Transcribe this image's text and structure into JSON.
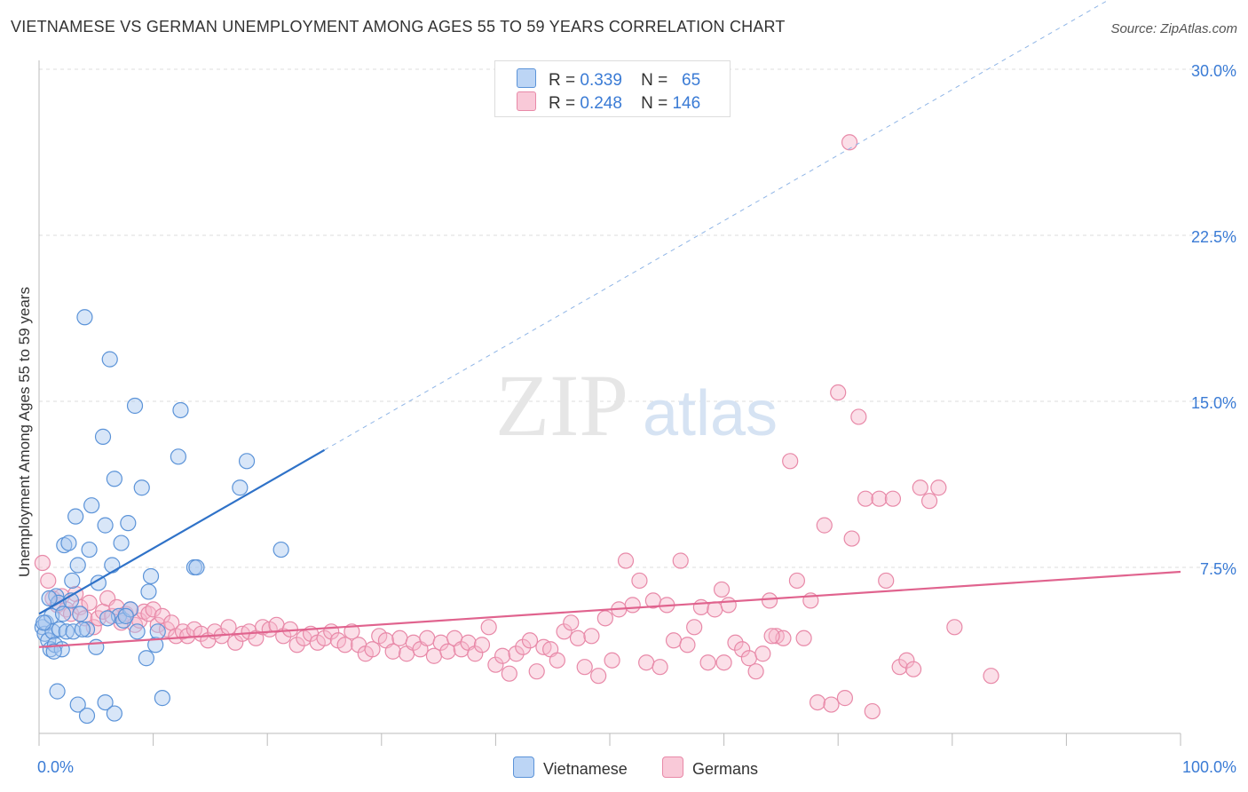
{
  "title": "VIETNAMESE VS GERMAN UNEMPLOYMENT AMONG AGES 55 TO 59 YEARS CORRELATION CHART",
  "source": "Source: ZipAtlas.com",
  "watermark": {
    "zip": "ZIP",
    "atlas": "atlas"
  },
  "legend": {
    "vietnamese": {
      "r_label": "R =",
      "r_value": "0.339",
      "n_label": "N =",
      "n_value": "65"
    },
    "germans": {
      "r_label": "R =",
      "r_value": "0.248",
      "n_label": "N =",
      "n_value": "146"
    }
  },
  "bottom_legend": {
    "vietnamese": "Vietnamese",
    "germans": "Germans"
  },
  "colors": {
    "vietnamese_fill": "#a8c8f0",
    "vietnamese_stroke": "#5b93d8",
    "vietnamese_line": "#2f72c8",
    "germans_fill": "#f7b8cc",
    "germans_stroke": "#e889a8",
    "germans_line": "#e0638e",
    "tick_label": "#3a7bd5",
    "grid": "#dddddd"
  },
  "chart_data": {
    "type": "scatter",
    "title": "VIETNAMESE VS GERMAN UNEMPLOYMENT AMONG AGES 55 TO 59 YEARS CORRELATION CHART",
    "xlabel": "",
    "ylabel": "Unemployment Among Ages 55 to 59 years",
    "xlim": [
      0,
      100
    ],
    "ylim": [
      0,
      30
    ],
    "x_tick_labels": [
      "0.0%",
      "100.0%"
    ],
    "y_ticks": [
      7.5,
      15.0,
      22.5,
      30.0
    ],
    "y_tick_labels": [
      "7.5%",
      "15.0%",
      "22.5%",
      "30.0%"
    ],
    "grid": true,
    "series": [
      {
        "name": "Vietnamese",
        "r": 0.339,
        "n": 65,
        "trend": {
          "x0": 0,
          "y0": 5.4,
          "x1": 25,
          "y1": 12.8,
          "dashed_to_x": 100,
          "dashed_to_y": 35.0
        },
        "points": [
          [
            0.3,
            4.8
          ],
          [
            0.5,
            4.5
          ],
          [
            0.6,
            5.0
          ],
          [
            0.8,
            4.2
          ],
          [
            1.0,
            3.8
          ],
          [
            1.2,
            4.6
          ],
          [
            1.4,
            4.0
          ],
          [
            1.5,
            6.2
          ],
          [
            1.7,
            5.9
          ],
          [
            1.8,
            4.7
          ],
          [
            2.0,
            3.8
          ],
          [
            2.2,
            8.5
          ],
          [
            2.4,
            4.6
          ],
          [
            2.6,
            8.6
          ],
          [
            2.8,
            6.0
          ],
          [
            3.0,
            4.6
          ],
          [
            3.2,
            9.8
          ],
          [
            3.4,
            7.6
          ],
          [
            3.6,
            5.4
          ],
          [
            4.0,
            18.8
          ],
          [
            4.2,
            4.7
          ],
          [
            4.4,
            8.3
          ],
          [
            4.6,
            10.3
          ],
          [
            5.0,
            3.9
          ],
          [
            5.2,
            6.8
          ],
          [
            5.6,
            13.4
          ],
          [
            5.8,
            9.4
          ],
          [
            6.2,
            16.9
          ],
          [
            6.4,
            7.6
          ],
          [
            6.6,
            11.5
          ],
          [
            7.0,
            5.3
          ],
          [
            7.2,
            8.6
          ],
          [
            7.4,
            5.1
          ],
          [
            7.8,
            9.5
          ],
          [
            8.0,
            5.6
          ],
          [
            8.4,
            14.8
          ],
          [
            8.6,
            4.6
          ],
          [
            9.0,
            11.1
          ],
          [
            9.4,
            3.4
          ],
          [
            9.6,
            6.4
          ],
          [
            9.8,
            7.1
          ],
          [
            10.2,
            4.0
          ],
          [
            10.4,
            4.6
          ],
          [
            10.8,
            1.6
          ],
          [
            13.6,
            7.5
          ],
          [
            13.8,
            7.5
          ],
          [
            12.2,
            12.5
          ],
          [
            12.4,
            14.6
          ],
          [
            17.6,
            11.1
          ],
          [
            18.2,
            12.3
          ],
          [
            21.2,
            8.3
          ],
          [
            1.6,
            1.9
          ],
          [
            3.4,
            1.3
          ],
          [
            4.2,
            0.8
          ],
          [
            5.8,
            1.4
          ],
          [
            6.6,
            0.9
          ],
          [
            1.1,
            5.3
          ],
          [
            1.3,
            3.7
          ],
          [
            2.1,
            5.4
          ],
          [
            0.9,
            6.1
          ],
          [
            3.8,
            4.7
          ],
          [
            2.9,
            6.9
          ],
          [
            6.0,
            5.2
          ],
          [
            7.6,
            5.3
          ],
          [
            0.4,
            5.0
          ]
        ]
      },
      {
        "name": "Germans",
        "r": 0.248,
        "n": 146,
        "trend": {
          "x0": 0,
          "y0": 3.9,
          "x1": 100,
          "y1": 7.3
        },
        "points": [
          [
            0.3,
            7.7
          ],
          [
            0.8,
            6.9
          ],
          [
            1.2,
            6.1
          ],
          [
            1.6,
            5.8
          ],
          [
            2.0,
            6.2
          ],
          [
            2.4,
            5.6
          ],
          [
            2.8,
            5.4
          ],
          [
            3.2,
            6.3
          ],
          [
            3.6,
            5.7
          ],
          [
            4.0,
            5.2
          ],
          [
            4.4,
            5.9
          ],
          [
            4.8,
            4.8
          ],
          [
            5.2,
            5.2
          ],
          [
            5.6,
            5.5
          ],
          [
            6.0,
            6.1
          ],
          [
            6.4,
            5.3
          ],
          [
            6.8,
            5.7
          ],
          [
            7.2,
            5.0
          ],
          [
            7.6,
            5.4
          ],
          [
            8.0,
            5.6
          ],
          [
            8.4,
            4.9
          ],
          [
            8.8,
            5.1
          ],
          [
            9.2,
            5.5
          ],
          [
            9.6,
            5.4
          ],
          [
            10.0,
            5.6
          ],
          [
            10.4,
            4.9
          ],
          [
            10.8,
            5.3
          ],
          [
            11.2,
            4.7
          ],
          [
            11.6,
            5.0
          ],
          [
            12.0,
            4.4
          ],
          [
            12.6,
            4.6
          ],
          [
            13.0,
            4.4
          ],
          [
            13.6,
            4.7
          ],
          [
            14.2,
            4.5
          ],
          [
            14.8,
            4.2
          ],
          [
            15.4,
            4.6
          ],
          [
            16.0,
            4.4
          ],
          [
            16.6,
            4.8
          ],
          [
            17.2,
            4.1
          ],
          [
            17.8,
            4.5
          ],
          [
            18.4,
            4.6
          ],
          [
            19.0,
            4.3
          ],
          [
            19.6,
            4.8
          ],
          [
            20.2,
            4.7
          ],
          [
            20.8,
            4.9
          ],
          [
            21.4,
            4.4
          ],
          [
            22.0,
            4.7
          ],
          [
            22.6,
            4.0
          ],
          [
            23.2,
            4.3
          ],
          [
            23.8,
            4.5
          ],
          [
            24.4,
            4.1
          ],
          [
            25.0,
            4.3
          ],
          [
            25.6,
            4.6
          ],
          [
            26.2,
            4.2
          ],
          [
            26.8,
            4.0
          ],
          [
            27.4,
            4.6
          ],
          [
            28.0,
            4.0
          ],
          [
            28.6,
            3.6
          ],
          [
            29.2,
            3.8
          ],
          [
            29.8,
            4.4
          ],
          [
            30.4,
            4.2
          ],
          [
            31.0,
            3.7
          ],
          [
            31.6,
            4.3
          ],
          [
            32.2,
            3.6
          ],
          [
            32.8,
            4.1
          ],
          [
            33.4,
            3.8
          ],
          [
            34.0,
            4.3
          ],
          [
            34.6,
            3.5
          ],
          [
            35.2,
            4.1
          ],
          [
            35.8,
            3.7
          ],
          [
            36.4,
            4.3
          ],
          [
            37.0,
            3.8
          ],
          [
            37.6,
            4.1
          ],
          [
            38.2,
            3.6
          ],
          [
            38.8,
            4.0
          ],
          [
            39.4,
            4.8
          ],
          [
            40.0,
            3.1
          ],
          [
            40.6,
            3.5
          ],
          [
            41.2,
            2.7
          ],
          [
            41.8,
            3.6
          ],
          [
            42.4,
            3.9
          ],
          [
            43.0,
            4.2
          ],
          [
            43.6,
            2.8
          ],
          [
            44.2,
            3.9
          ],
          [
            44.8,
            3.8
          ],
          [
            45.4,
            3.3
          ],
          [
            46.0,
            4.6
          ],
          [
            46.6,
            5.0
          ],
          [
            47.2,
            4.3
          ],
          [
            47.8,
            3.0
          ],
          [
            48.4,
            4.4
          ],
          [
            49.0,
            2.6
          ],
          [
            49.6,
            5.2
          ],
          [
            50.2,
            3.3
          ],
          [
            50.8,
            5.6
          ],
          [
            51.4,
            7.8
          ],
          [
            52.0,
            5.8
          ],
          [
            52.6,
            6.9
          ],
          [
            53.2,
            3.2
          ],
          [
            53.8,
            6.0
          ],
          [
            54.4,
            3.0
          ],
          [
            55.0,
            5.8
          ],
          [
            55.6,
            4.2
          ],
          [
            56.2,
            7.8
          ],
          [
            56.8,
            4.0
          ],
          [
            57.4,
            4.8
          ],
          [
            58.0,
            5.7
          ],
          [
            58.6,
            3.2
          ],
          [
            59.2,
            5.6
          ],
          [
            59.8,
            6.5
          ],
          [
            60.4,
            5.8
          ],
          [
            61.0,
            4.1
          ],
          [
            61.6,
            3.8
          ],
          [
            62.2,
            3.4
          ],
          [
            62.8,
            2.8
          ],
          [
            63.4,
            3.6
          ],
          [
            64.0,
            6.0
          ],
          [
            64.6,
            4.4
          ],
          [
            65.2,
            4.3
          ],
          [
            65.8,
            12.3
          ],
          [
            66.4,
            6.9
          ],
          [
            67.0,
            4.3
          ],
          [
            67.6,
            6.0
          ],
          [
            68.2,
            1.4
          ],
          [
            68.8,
            9.4
          ],
          [
            69.4,
            1.3
          ],
          [
            70.0,
            15.4
          ],
          [
            70.6,
            1.6
          ],
          [
            71.2,
            8.8
          ],
          [
            71.8,
            14.3
          ],
          [
            72.4,
            10.6
          ],
          [
            73.0,
            1.0
          ],
          [
            73.6,
            10.6
          ],
          [
            74.2,
            6.9
          ],
          [
            74.8,
            10.6
          ],
          [
            75.4,
            3.0
          ],
          [
            76.0,
            3.3
          ],
          [
            76.6,
            2.9
          ],
          [
            77.2,
            11.1
          ],
          [
            78.0,
            10.5
          ],
          [
            78.8,
            11.1
          ],
          [
            80.2,
            4.8
          ],
          [
            83.4,
            2.6
          ],
          [
            71.0,
            26.7
          ],
          [
            60.0,
            3.2
          ],
          [
            64.2,
            4.4
          ]
        ]
      }
    ]
  }
}
